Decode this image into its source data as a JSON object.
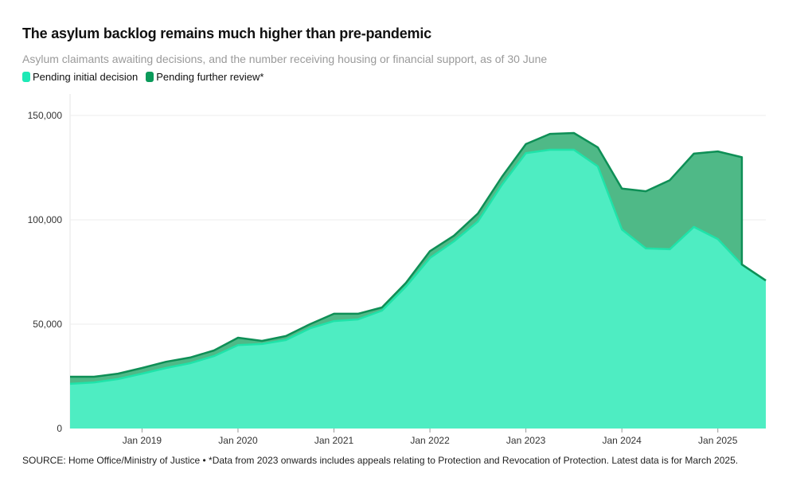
{
  "title": "The asylum backlog remains much higher than pre-pandemic",
  "subtitle": "Asylum claimants awaiting decisions, and the number receiving housing or financial support, as of 30 June",
  "legend": [
    {
      "label": "Pending initial decision",
      "color": "#1de9b6"
    },
    {
      "label": "Pending further review*",
      "color": "#0b9a5a"
    }
  ],
  "source": "SOURCE: Home Office/Ministry of Justice • *Data from 2023 onwards includes appeals relating to Protection and Revocation of Protection. Latest data is for March 2025.",
  "colors": {
    "initial_fill": "#4eedc2",
    "initial_line": "#1fe3a9",
    "review_fill": "#4fb987",
    "review_line": "#0e8f56",
    "grid": "#ececec"
  },
  "chart_data": {
    "type": "area",
    "stacked": true,
    "title": "The asylum backlog remains much higher than pre-pandemic",
    "xlabel": "",
    "ylabel": "",
    "x": [
      2018.25,
      2018.5,
      2018.75,
      2019.0,
      2019.25,
      2019.5,
      2019.75,
      2020.0,
      2020.25,
      2020.5,
      2020.75,
      2021.0,
      2021.25,
      2021.5,
      2021.75,
      2022.0,
      2022.25,
      2022.5,
      2022.75,
      2023.0,
      2023.25,
      2023.5,
      2023.75,
      2024.0,
      2024.25,
      2024.5,
      2024.75,
      2025.0,
      2025.25,
      2025.5
    ],
    "series": [
      {
        "name": "Pending initial decision",
        "values": [
          21400,
          22100,
          23700,
          26300,
          29000,
          31300,
          34700,
          40000,
          40500,
          42400,
          48000,
          51500,
          52300,
          56500,
          68000,
          81700,
          89700,
          99200,
          116800,
          132000,
          133600,
          133600,
          125600,
          95400,
          86300,
          85900,
          96600,
          90800,
          78600,
          70900
        ]
      },
      {
        "name": "Pending further review*",
        "values": [
          3400,
          2700,
          2600,
          2700,
          3000,
          2700,
          2700,
          3500,
          1500,
          1900,
          2000,
          3500,
          2700,
          1500,
          1800,
          3300,
          2700,
          3800,
          3800,
          4300,
          7600,
          8000,
          9100,
          19600,
          27400,
          33100,
          35100,
          42000,
          51400,
          null
        ]
      }
    ],
    "xlim": [
      2018.25,
      2025.5
    ],
    "ylim": [
      0,
      155000
    ],
    "yticks": [
      0,
      50000,
      100000,
      150000
    ],
    "ytick_labels": [
      "0",
      "50,000",
      "100,000",
      "150,000"
    ],
    "xticks": [
      2019,
      2020,
      2021,
      2022,
      2023,
      2024,
      2025
    ],
    "xtick_labels": [
      "Jan 2019",
      "Jan 2020",
      "Jan 2021",
      "Jan 2022",
      "Jan 2023",
      "Jan 2024",
      "Jan 2025"
    ],
    "grid": true,
    "legend_position": "top-left"
  }
}
